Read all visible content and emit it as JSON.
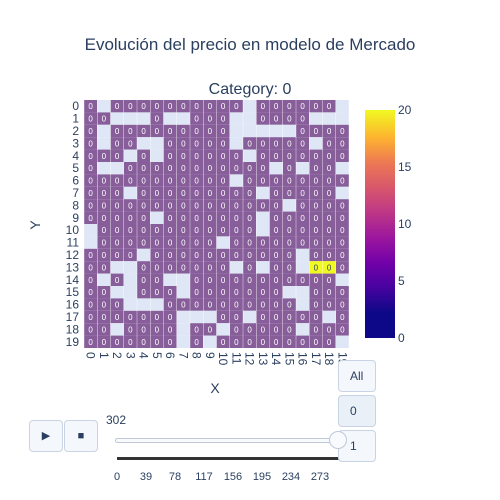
{
  "chart_data": {
    "type": "heatmap",
    "title": "Evolución del precio en modelo de Mercado",
    "subtitle": "Category: 0",
    "xlabel": "X",
    "ylabel": "Y",
    "x_ticks": [
      "0",
      "1",
      "2",
      "3",
      "4",
      "5",
      "6",
      "7",
      "8",
      "9",
      "10",
      "11",
      "12",
      "13",
      "14",
      "15",
      "16",
      "17",
      "18",
      "19"
    ],
    "y_ticks": [
      "0",
      "1",
      "2",
      "3",
      "4",
      "5",
      "6",
      "7",
      "8",
      "9",
      "10",
      "11",
      "12",
      "13",
      "14",
      "15",
      "16",
      "17",
      "18",
      "19"
    ],
    "colorscale": "plasma",
    "zmin": 0,
    "zmax": 20,
    "colorbar_ticks": [
      "0",
      "5",
      "10",
      "15",
      "20"
    ],
    "base_color": "#875d9a",
    "empty_color": "#dfe6f5",
    "cell_label": "0",
    "highlight_cells": [
      {
        "x": 17,
        "y": 13,
        "value": 20,
        "label": "0"
      },
      {
        "x": 18,
        "y": 13,
        "value": 20,
        "label": "0"
      }
    ],
    "empty_cells": [
      [
        0,
        10
      ],
      [
        0,
        11
      ],
      [
        1,
        0
      ],
      [
        1,
        14
      ],
      [
        2,
        1
      ],
      [
        2,
        15
      ],
      [
        3,
        1
      ],
      [
        3,
        4
      ],
      [
        3,
        14
      ],
      [
        3,
        15
      ],
      [
        3,
        16
      ],
      [
        4,
        3
      ],
      [
        4,
        16
      ],
      [
        4,
        1
      ],
      [
        5,
        3
      ],
      [
        5,
        4
      ],
      [
        5,
        16
      ],
      [
        6,
        1
      ],
      [
        6,
        14
      ],
      [
        7,
        1
      ],
      [
        7,
        18
      ],
      [
        7,
        19
      ],
      [
        7,
        14
      ],
      [
        7,
        15
      ],
      [
        7,
        17
      ],
      [
        7,
        18
      ],
      [
        8,
        17
      ],
      [
        9,
        17
      ],
      [
        9,
        19
      ],
      [
        10,
        11
      ],
      [
        10,
        18
      ],
      [
        11,
        1
      ],
      [
        11,
        2
      ],
      [
        11,
        3
      ],
      [
        11,
        6
      ],
      [
        11,
        13
      ],
      [
        12,
        2
      ],
      [
        12,
        0
      ],
      [
        12,
        1
      ],
      [
        12,
        4
      ],
      [
        13,
        2
      ],
      [
        13,
        13
      ],
      [
        14,
        2
      ],
      [
        15,
        2
      ],
      [
        15,
        8
      ],
      [
        16,
        5
      ],
      [
        16,
        12
      ],
      [
        16,
        13
      ],
      [
        16,
        15
      ],
      [
        16,
        16
      ],
      [
        16,
        18
      ],
      [
        17,
        1
      ],
      [
        17,
        3
      ],
      [
        18,
        1
      ],
      [
        18,
        17
      ],
      [
        19,
        0
      ],
      [
        19,
        1
      ],
      [
        19,
        5
      ],
      [
        19,
        7
      ],
      [
        19,
        14
      ],
      [
        19,
        19
      ],
      [
        15,
        15
      ],
      [
        13,
        9
      ],
      [
        13,
        10
      ],
      [
        2,
        13
      ],
      [
        3,
        13
      ],
      [
        5,
        9
      ],
      [
        4,
        12
      ],
      [
        2,
        18
      ],
      [
        1,
        2
      ],
      [
        1,
        3
      ],
      [
        1,
        5
      ],
      [
        2,
        5
      ],
      [
        3,
        7
      ],
      [
        12,
        17
      ],
      [
        13,
        7
      ],
      [
        14,
        5
      ]
    ]
  },
  "animation": {
    "play_icon": "play-icon",
    "stop_icon": "stop-icon",
    "buttons": [
      "All",
      "0",
      "1"
    ],
    "selected_button": "0",
    "slider_value": "302",
    "slider_position": 1.0,
    "slider_ticks": [
      "0",
      "39",
      "78",
      "117",
      "156",
      "195",
      "234",
      "273"
    ]
  }
}
